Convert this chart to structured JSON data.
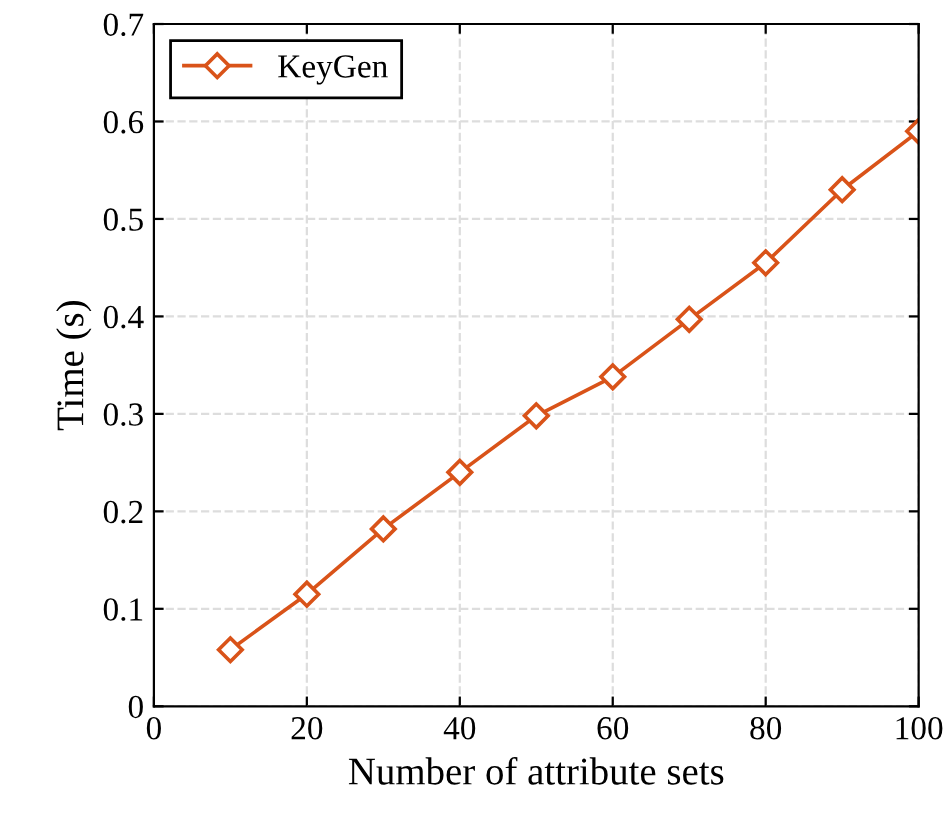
{
  "chart_data": {
    "type": "line",
    "xlabel": "Number of attribute sets",
    "ylabel": "Time (s)",
    "x": [
      10,
      20,
      30,
      40,
      50,
      60,
      70,
      80,
      90,
      100
    ],
    "series": [
      {
        "name": "KeyGen",
        "color": "#d95319",
        "values": [
          0.058,
          0.115,
          0.182,
          0.24,
          0.298,
          0.338,
          0.397,
          0.455,
          0.53,
          0.59
        ]
      }
    ],
    "xlim": [
      0,
      100
    ],
    "xticks": [
      0,
      20,
      40,
      60,
      80,
      100
    ],
    "ylim": [
      0,
      0.7
    ],
    "yticks": [
      0,
      0.1,
      0.2,
      0.3,
      0.4,
      0.5,
      0.6,
      0.7
    ],
    "grid": true,
    "legend": "top left",
    "marker": "diamond",
    "line_style": "solid"
  }
}
